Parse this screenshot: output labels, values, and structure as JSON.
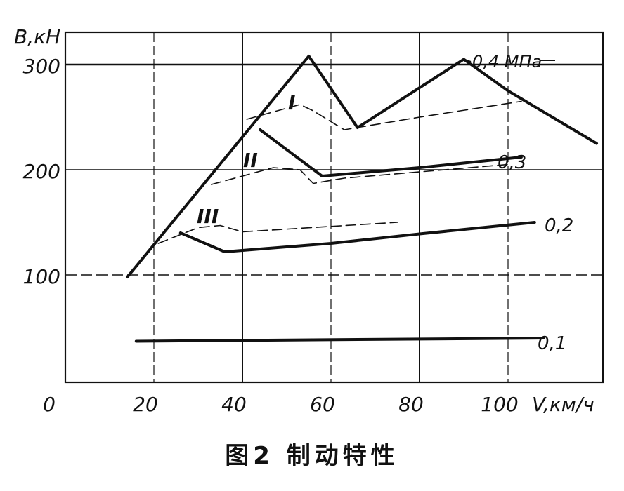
{
  "chart_data": {
    "type": "line",
    "ylabel": "B,кН",
    "xlabel": "V,км/ч",
    "x_origin_label": "0",
    "xlim": [
      0,
      120
    ],
    "ylim": [
      0,
      300
    ],
    "x_ticks": [
      "20",
      "40",
      "60",
      "80",
      "100"
    ],
    "y_ticks": [
      "100",
      "200",
      "300"
    ],
    "grid": true,
    "series": [
      {
        "name": "0,4 МПа",
        "style": "solid-bold",
        "x": [
          14,
          55,
          66,
          90,
          100,
          110,
          120
        ],
        "y": [
          98,
          308,
          240,
          305,
          275,
          250,
          225
        ]
      },
      {
        "name": "0,3",
        "style": "solid-bold",
        "x": [
          44,
          58,
          80,
          103
        ],
        "y": [
          238,
          194,
          202,
          212
        ]
      },
      {
        "name": "0,2",
        "style": "solid-bold",
        "x": [
          26,
          36,
          60,
          80,
          106
        ],
        "y": [
          140,
          122,
          130,
          139,
          150
        ]
      },
      {
        "name": "0,1",
        "style": "solid-bold",
        "x": [
          16,
          108
        ],
        "y": [
          37,
          40
        ]
      },
      {
        "name": "I",
        "style": "dashed",
        "x": [
          41,
          53,
          56,
          63,
          80,
          103
        ],
        "y": [
          248,
          262,
          256,
          238,
          250,
          265
        ]
      },
      {
        "name": "II",
        "style": "dashed",
        "x": [
          33,
          47,
          53,
          56,
          63,
          100
        ],
        "y": [
          186,
          202,
          200,
          187,
          192,
          205
        ]
      },
      {
        "name": "III",
        "style": "dashed",
        "x": [
          21,
          30,
          35,
          40,
          75
        ],
        "y": [
          130,
          145,
          147,
          141,
          150
        ]
      }
    ]
  },
  "figure_caption": "图2    制动特性"
}
